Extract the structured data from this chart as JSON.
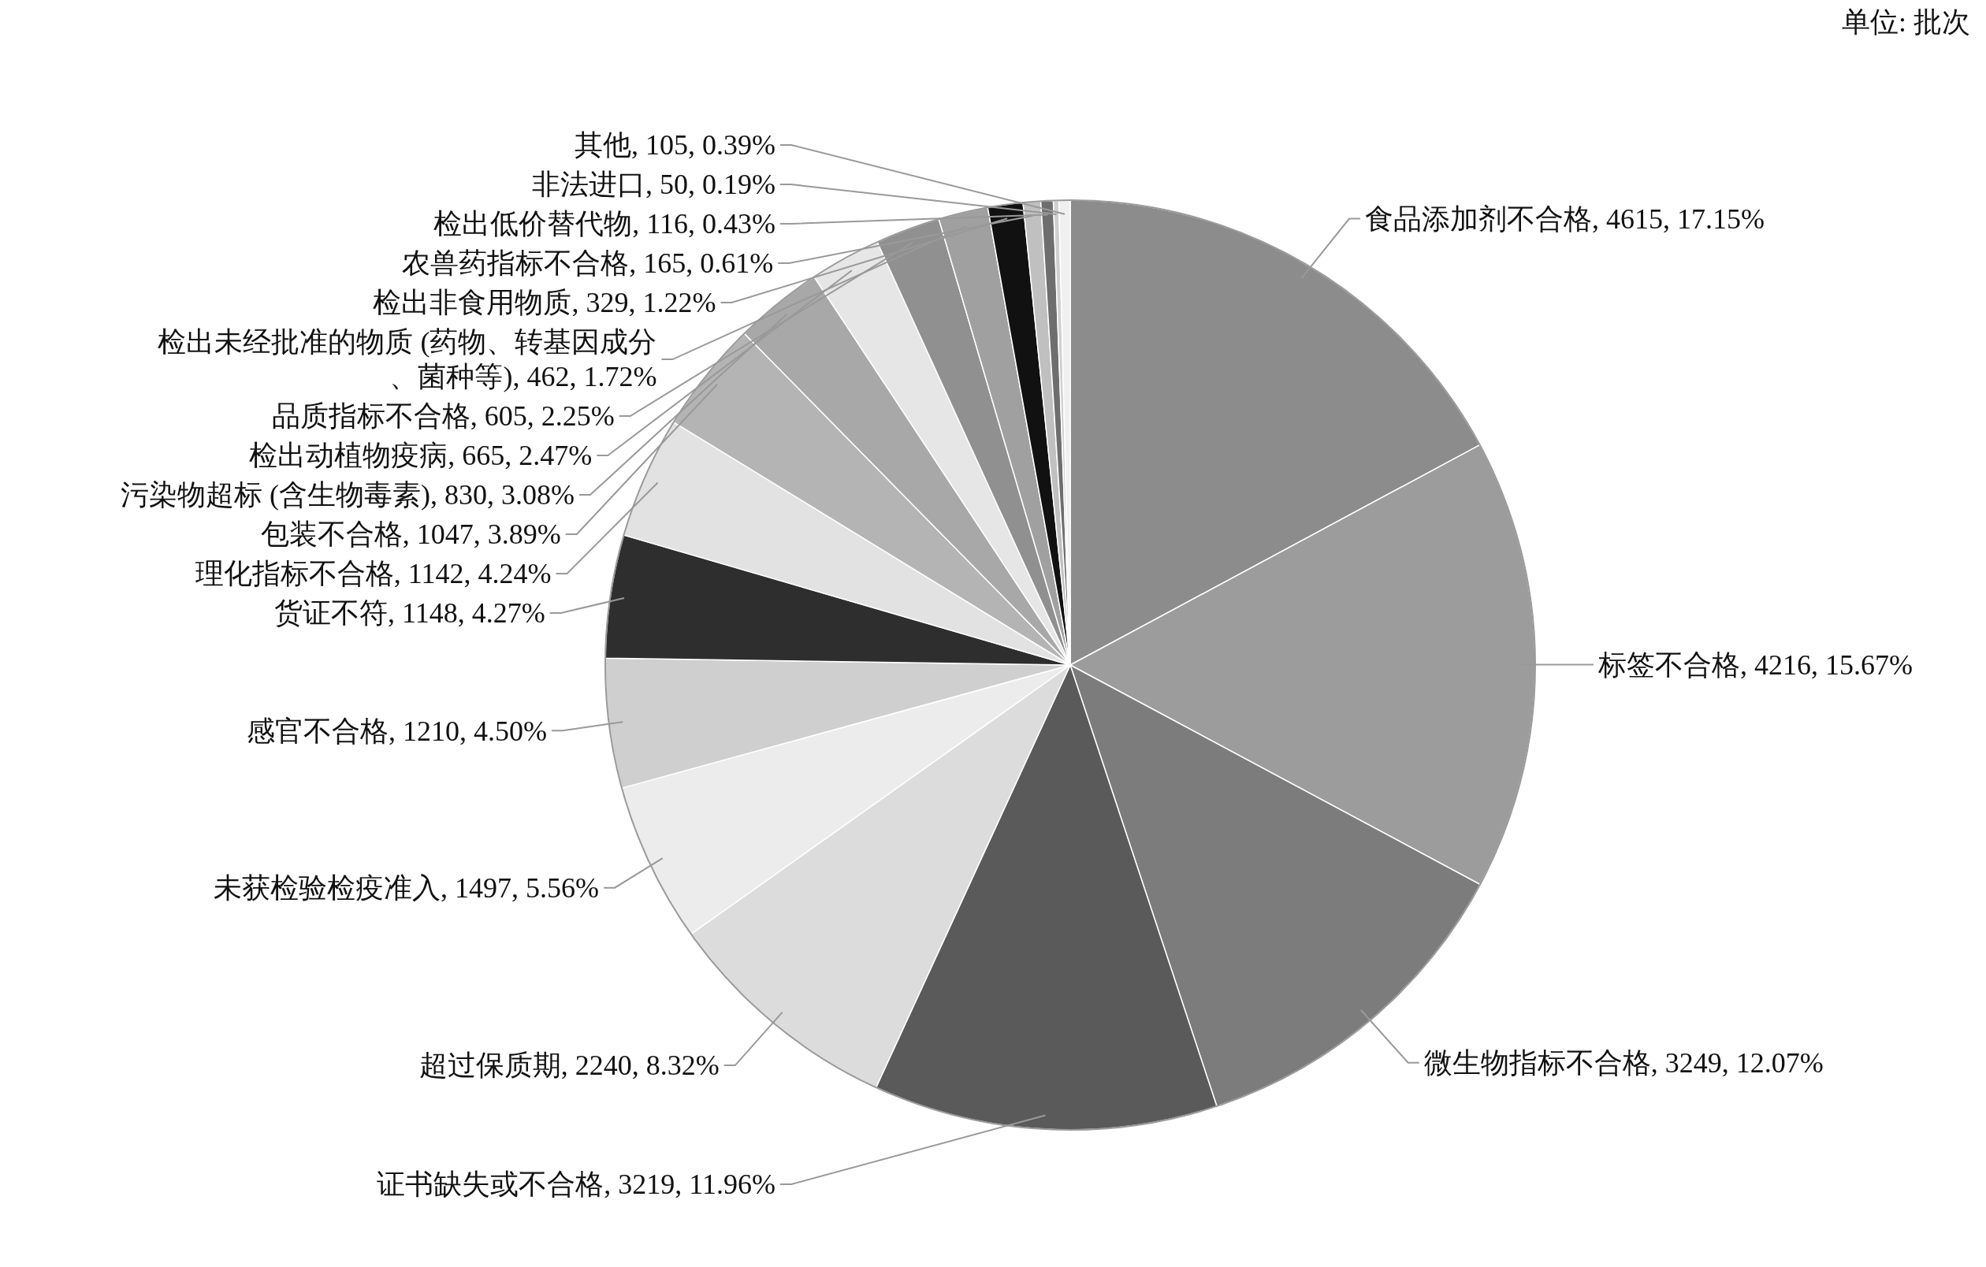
{
  "chart_data": {
    "type": "pie",
    "annotations": [
      "单位: 批次"
    ],
    "categories": [
      "食品添加剂不合格",
      "标签不合格",
      "微生物指标不合格",
      "证书缺失或不合格",
      "超过保质期",
      "未获检验检疫准入",
      "感官不合格",
      "货证不符",
      "理化指标不合格",
      "包装不合格",
      "污染物超标 (含生物毒素)",
      "检出动植物疫病",
      "品质指标不合格",
      "检出未经批准的物质 (药物、转基因成分、菌种等)",
      "检出非食用物质",
      "农兽药指标不合格",
      "检出低价替代物",
      "非法进口",
      "其他"
    ],
    "values": [
      17.15,
      15.67,
      12.07,
      11.96,
      8.32,
      5.56,
      4.5,
      4.27,
      4.24,
      3.89,
      3.08,
      2.47,
      2.25,
      1.72,
      1.22,
      0.61,
      0.43,
      0.19,
      0.39
    ],
    "value_labels": [
      "4615, 17.15%",
      "4216, 15.67%",
      "3249, 12.07%",
      "3219, 11.96%",
      "2240, 8.32%",
      "1497, 5.56%",
      "1210, 4.50%",
      "1148, 4.27%",
      "1142, 4.24%",
      "1047, 3.89%",
      "830, 3.08%",
      "665, 2.47%",
      "605, 2.25%",
      "462, 1.72%",
      "329, 1.22%",
      "165, 0.61%",
      "116, 0.43%",
      "50, 0.19%",
      "105, 0.39%"
    ],
    "colors": [
      "#8c8c8c",
      "#9c9c9c",
      "#7c7c7c",
      "#5a5a5a",
      "#dcdcdc",
      "#ececec",
      "#cfcfcf",
      "#2e2e2e",
      "#e2e2e2",
      "#b4b4b4",
      "#a8a8a8",
      "#e6e6e6",
      "#909090",
      "#a0a0a0",
      "#111111",
      "#c0c0c0",
      "#6e6e6e",
      "#d0d0d0",
      "#f0f0f0"
    ]
  }
}
